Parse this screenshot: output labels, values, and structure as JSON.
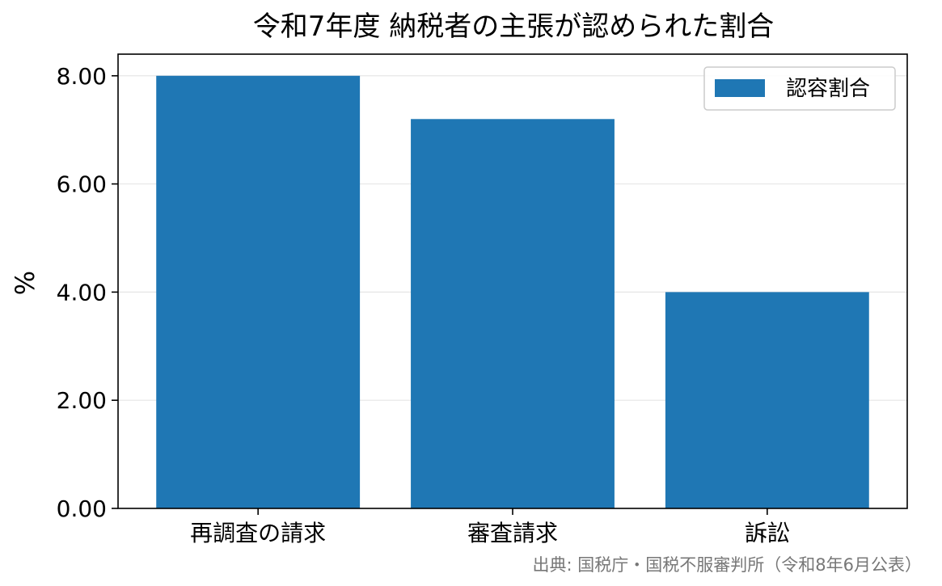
{
  "chart_data": {
    "type": "bar",
    "title": "令和7年度 納税者の主張が認められた割合",
    "xlabel": "",
    "ylabel": "%",
    "categories": [
      "再調査の請求",
      "審査請求",
      "訴訟"
    ],
    "series": [
      {
        "name": "認容割合",
        "values": [
          8.0,
          7.2,
          4.0
        ]
      }
    ],
    "ylim": [
      0,
      8.4
    ],
    "yticks": [
      0,
      2,
      4,
      6,
      8
    ],
    "ytick_labels": [
      "0.00",
      "2.00",
      "4.00",
      "6.00",
      "8.00"
    ],
    "grid": "y",
    "legend_position": "top-right",
    "source_note": "出典: 国税庁・国税不服審判所（令和8年6月公表）"
  },
  "colors": {
    "bar": "#1f77b4",
    "grid": "#e6e6e6",
    "axis": "#000000",
    "source": "#777777"
  }
}
